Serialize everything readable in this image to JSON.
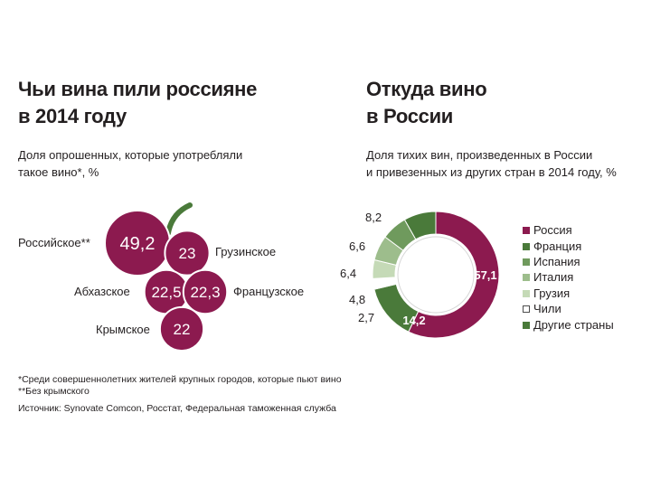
{
  "left": {
    "title_line1": "Чьи вина пили россияне",
    "title_line2": "в 2014 году",
    "subtitle_line1": "Доля опрошенных, которые употребляли",
    "subtitle_line2": "такое вино*, %"
  },
  "right": {
    "title_line1": "Откуда вино",
    "title_line2": "в России",
    "subtitle_line1": "Доля тихих вин, произведенных в России",
    "subtitle_line2": "и привезенных  из других стран в 2014 году, %"
  },
  "footnotes": {
    "note1": "*Среди совершеннолетних жителей крупных городов, которые пьют вино",
    "note2": "**Без крымского",
    "source": "Источник: Synovate Comcon, Росстат, Федеральная таможенная служба"
  },
  "colors": {
    "wine": "#8c1a4f",
    "green_dark": "#4a7a3a",
    "green_mid": "#6f9a5d",
    "green_light": "#9dbd8c",
    "green_pale": "#c5dab7",
    "white": "#ffffff"
  },
  "chart_data": [
    {
      "type": "bubble",
      "title": "Чьи вина пили россияне в 2014 году",
      "unit": "%",
      "items": [
        {
          "name": "Российское**",
          "value": 49.2,
          "value_label": "49,2"
        },
        {
          "name": "Грузинское",
          "value": 23,
          "value_label": "23"
        },
        {
          "name": "Абхазское",
          "value": 22.5,
          "value_label": "22,5"
        },
        {
          "name": "Французское",
          "value": 22.3,
          "value_label": "22,3"
        },
        {
          "name": "Крымское",
          "value": 22,
          "value_label": "22"
        }
      ]
    },
    {
      "type": "pie",
      "title": "Откуда вино в России",
      "unit": "%",
      "slices": [
        {
          "name": "Россия",
          "value": 57.1,
          "value_label": "57,1",
          "color": "#8c1a4f"
        },
        {
          "name": "Франция",
          "value": 8.2,
          "value_label": "8,2",
          "color": "#4a7a3a"
        },
        {
          "name": "Испания",
          "value": 6.6,
          "value_label": "6,6",
          "color": "#6f9a5d"
        },
        {
          "name": "Италия",
          "value": 6.4,
          "value_label": "6,4",
          "color": "#9dbd8c"
        },
        {
          "name": "Грузия",
          "value": 4.8,
          "value_label": "4,8",
          "color": "#c5dab7"
        },
        {
          "name": "Чили",
          "value": 2.7,
          "value_label": "2,7",
          "color": "#ffffff"
        },
        {
          "name": "Другие страны",
          "value": 14.2,
          "value_label": "14,2",
          "color": "#4a7a3a"
        }
      ]
    }
  ]
}
